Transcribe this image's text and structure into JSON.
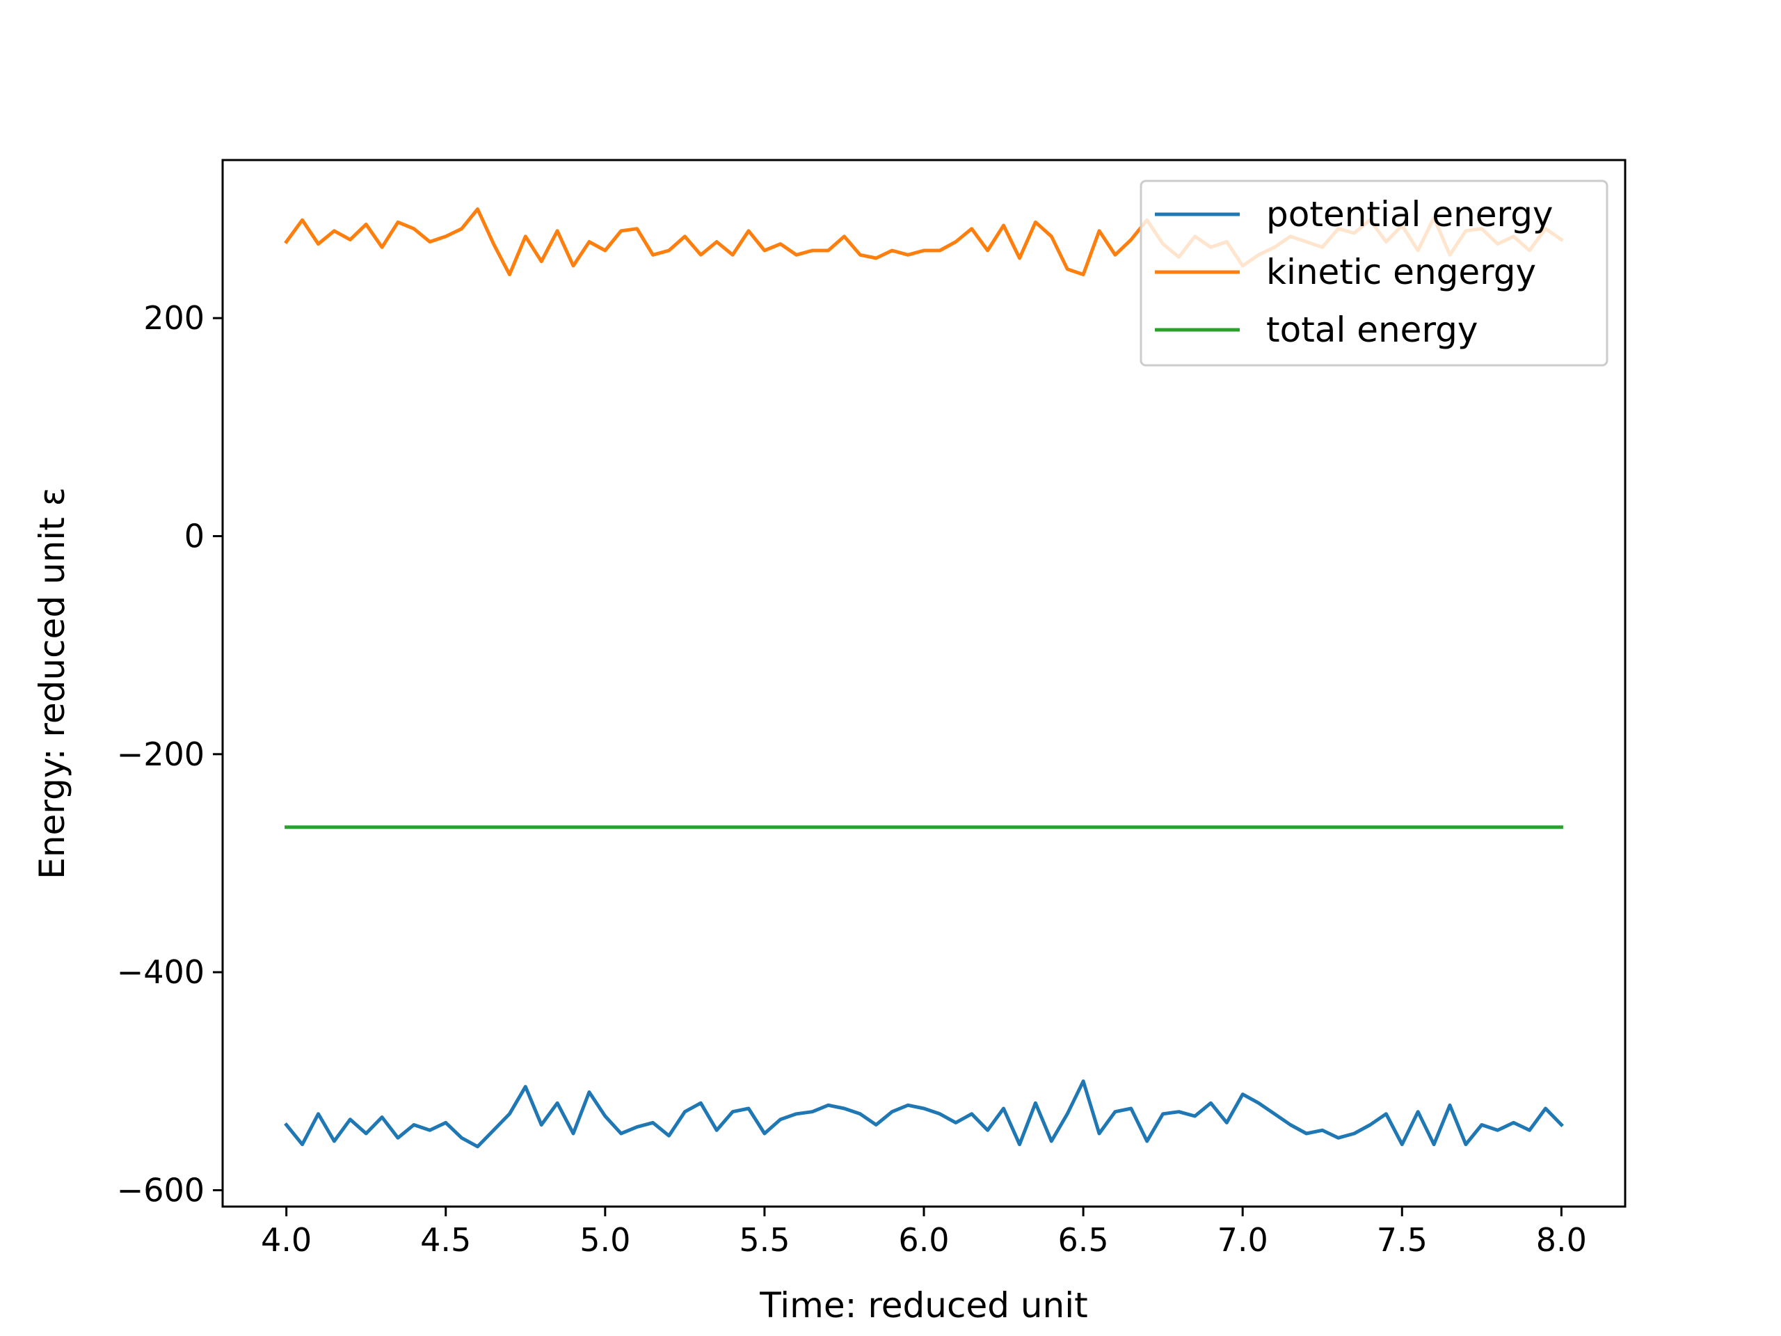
{
  "chart_data": {
    "type": "line",
    "title": "",
    "xlabel": "Time: reduced unit",
    "ylabel": "Energy: reduced unit ε",
    "xlim": [
      3.8,
      8.2
    ],
    "ylim": [
      -615,
      345
    ],
    "xticks": [
      4.0,
      4.5,
      5.0,
      5.5,
      6.0,
      6.5,
      7.0,
      7.5,
      8.0
    ],
    "xtick_labels": [
      "4.0",
      "4.5",
      "5.0",
      "5.5",
      "6.0",
      "6.5",
      "7.0",
      "7.5",
      "8.0"
    ],
    "yticks": [
      200,
      0,
      -200,
      -400,
      -600
    ],
    "ytick_labels": [
      "200",
      "0",
      "−200",
      "−400",
      "−600"
    ],
    "grid": false,
    "legend_position": "top-right",
    "x": [
      4.0,
      4.05,
      4.1,
      4.15,
      4.2,
      4.25,
      4.3,
      4.35,
      4.4,
      4.45,
      4.5,
      4.55,
      4.6,
      4.65,
      4.7,
      4.75,
      4.8,
      4.85,
      4.9,
      4.95,
      5.0,
      5.05,
      5.1,
      5.15,
      5.2,
      5.25,
      5.3,
      5.35,
      5.4,
      5.45,
      5.5,
      5.55,
      5.6,
      5.65,
      5.7,
      5.75,
      5.8,
      5.85,
      5.9,
      5.95,
      6.0,
      6.05,
      6.1,
      6.15,
      6.2,
      6.25,
      6.3,
      6.35,
      6.4,
      6.45,
      6.5,
      6.55,
      6.6,
      6.65,
      6.7,
      6.75,
      6.8,
      6.85,
      6.9,
      6.95,
      7.0,
      7.05,
      7.1,
      7.15,
      7.2,
      7.25,
      7.3,
      7.35,
      7.4,
      7.45,
      7.5,
      7.55,
      7.6,
      7.65,
      7.7,
      7.75,
      7.8,
      7.85,
      7.9,
      7.95,
      8.0
    ],
    "series": [
      {
        "name": "potential energy",
        "color": "#1f77b4",
        "values": [
          -540,
          -558,
          -530,
          -555,
          -535,
          -548,
          -533,
          -552,
          -540,
          -545,
          -538,
          -552,
          -560,
          -545,
          -530,
          -505,
          -540,
          -520,
          -548,
          -510,
          -532,
          -548,
          -542,
          -538,
          -550,
          -528,
          -520,
          -545,
          -528,
          -525,
          -548,
          -535,
          -530,
          -528,
          -522,
          -525,
          -530,
          -540,
          -528,
          -522,
          -525,
          -530,
          -538,
          -530,
          -545,
          -525,
          -558,
          -520,
          -555,
          -530,
          -500,
          -548,
          -528,
          -525,
          -555,
          -530,
          -528,
          -532,
          -520,
          -538,
          -512,
          -520,
          -530,
          -540,
          -548,
          -545,
          -552,
          -548,
          -540,
          -530,
          -558,
          -528,
          -558,
          -522,
          -558,
          -540,
          -545,
          -538,
          -545,
          -525,
          -540
        ]
      },
      {
        "name": "kinetic engergy",
        "color": "#ff7f0e",
        "values": [
          270,
          290,
          268,
          280,
          272,
          286,
          265,
          288,
          282,
          270,
          275,
          282,
          300,
          268,
          240,
          275,
          252,
          280,
          248,
          270,
          262,
          280,
          282,
          258,
          262,
          275,
          258,
          270,
          258,
          280,
          262,
          268,
          258,
          262,
          262,
          275,
          258,
          255,
          262,
          258,
          262,
          262,
          270,
          282,
          262,
          285,
          255,
          288,
          275,
          245,
          240,
          280,
          258,
          272,
          290,
          268,
          256,
          275,
          265,
          270,
          248,
          258,
          265,
          275,
          270,
          265,
          282,
          278,
          290,
          270,
          285,
          262,
          292,
          258,
          280,
          282,
          268,
          275,
          262,
          282,
          272
        ]
      },
      {
        "name": "total energy",
        "color": "#2ca02c",
        "values": [
          -267,
          -267,
          -267,
          -267,
          -267,
          -267,
          -267,
          -267,
          -267,
          -267,
          -267,
          -267,
          -267,
          -267,
          -267,
          -267,
          -267,
          -267,
          -267,
          -267,
          -267,
          -267,
          -267,
          -267,
          -267,
          -267,
          -267,
          -267,
          -267,
          -267,
          -267,
          -267,
          -267,
          -267,
          -267,
          -267,
          -267,
          -267,
          -267,
          -267,
          -267,
          -267,
          -267,
          -267,
          -267,
          -267,
          -267,
          -267,
          -267,
          -267,
          -267,
          -267,
          -267,
          -267,
          -267,
          -267,
          -267,
          -267,
          -267,
          -267,
          -267,
          -267,
          -267,
          -267,
          -267,
          -267,
          -267,
          -267,
          -267,
          -267,
          -267,
          -267,
          -267,
          -267,
          -267,
          -267,
          -267,
          -267,
          -267,
          -267,
          -267
        ]
      }
    ]
  }
}
